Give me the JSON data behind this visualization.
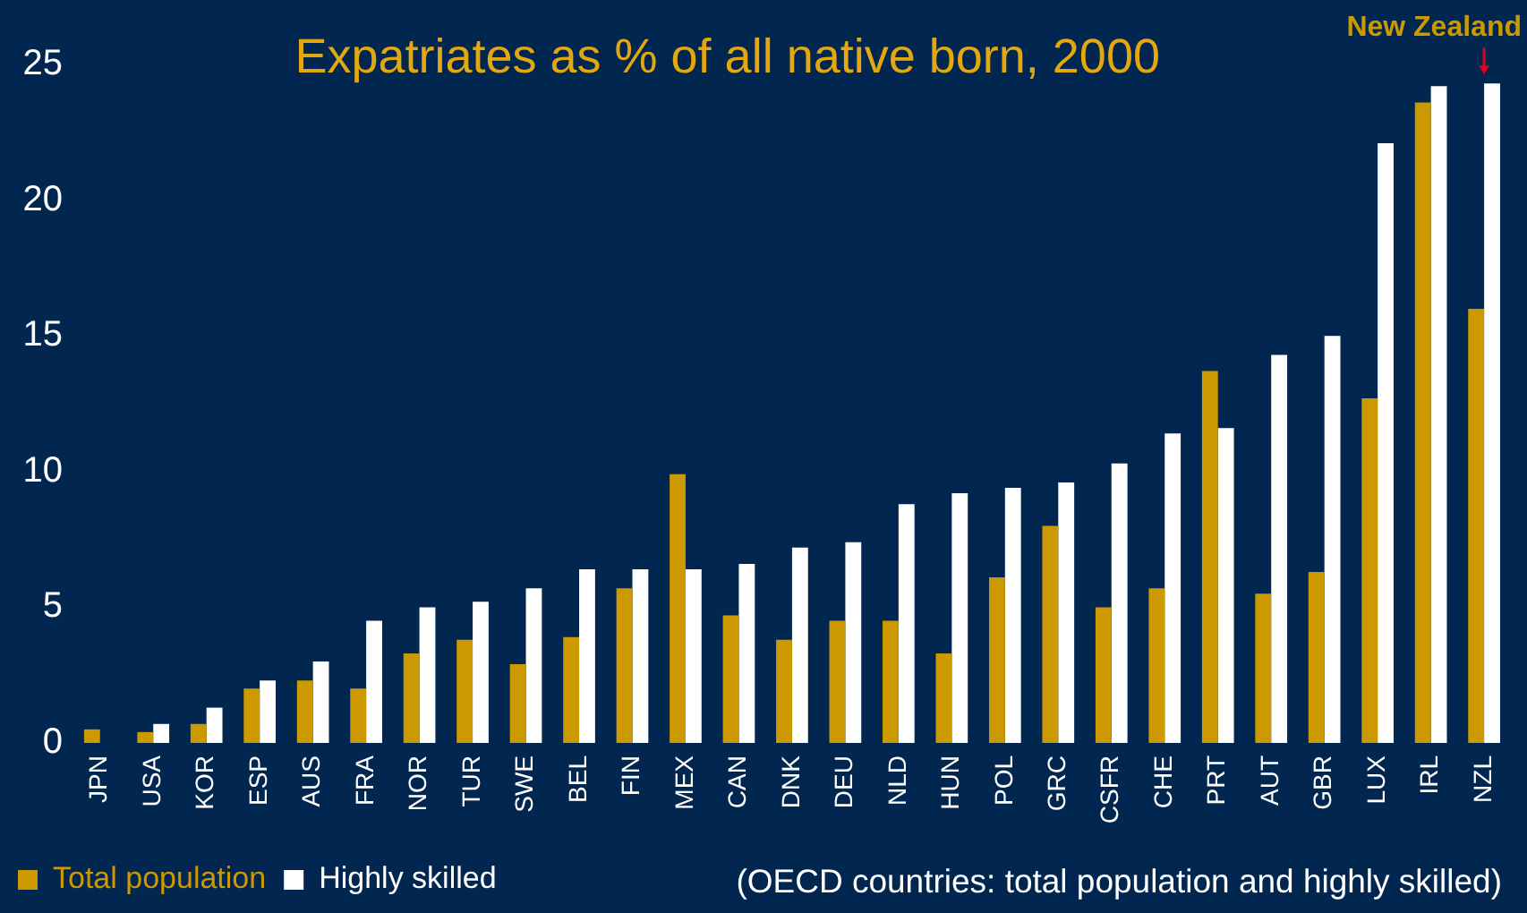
{
  "chart_data": {
    "type": "bar",
    "title": "Expatriates as % of all native born, 2000",
    "categories": [
      "JPN",
      "USA",
      "KOR",
      "ESP",
      "AUS",
      "FRA",
      "NOR",
      "TUR",
      "SWE",
      "BEL",
      "FIN",
      "MEX",
      "CAN",
      "DNK",
      "DEU",
      "NLD",
      "HUN",
      "POL",
      "GRC",
      "CSFR",
      "CHE",
      "PRT",
      "AUT",
      "GBR",
      "LUX",
      "IRL",
      "NZL"
    ],
    "series": [
      {
        "name": "Total population",
        "color": "#cc9900",
        "values": [
          0.5,
          0.4,
          0.7,
          2.0,
          2.3,
          2.0,
          3.3,
          3.8,
          2.9,
          3.9,
          5.7,
          9.9,
          4.7,
          3.8,
          4.5,
          4.5,
          3.3,
          6.1,
          8.0,
          5.0,
          5.7,
          13.7,
          5.5,
          6.3,
          12.7,
          23.6,
          16.0
        ]
      },
      {
        "name": "Highly skilled",
        "color": "#ffffff",
        "values": [
          null,
          0.7,
          1.3,
          2.3,
          3.0,
          4.5,
          5.0,
          5.2,
          5.7,
          6.4,
          6.4,
          6.4,
          6.6,
          7.2,
          7.4,
          8.8,
          9.2,
          9.4,
          9.6,
          10.3,
          11.4,
          11.6,
          14.3,
          15.0,
          22.1,
          24.2,
          24.3
        ]
      }
    ],
    "ylim": [
      0,
      25
    ],
    "yticks": [
      0,
      5,
      10,
      15,
      20,
      25
    ],
    "grid": false,
    "legend": "bottom left",
    "annotations": [
      {
        "text": "New Zealand",
        "x": "NZL",
        "y": 24.3
      },
      "(OECD countries: total population and highly skilled)"
    ]
  }
}
